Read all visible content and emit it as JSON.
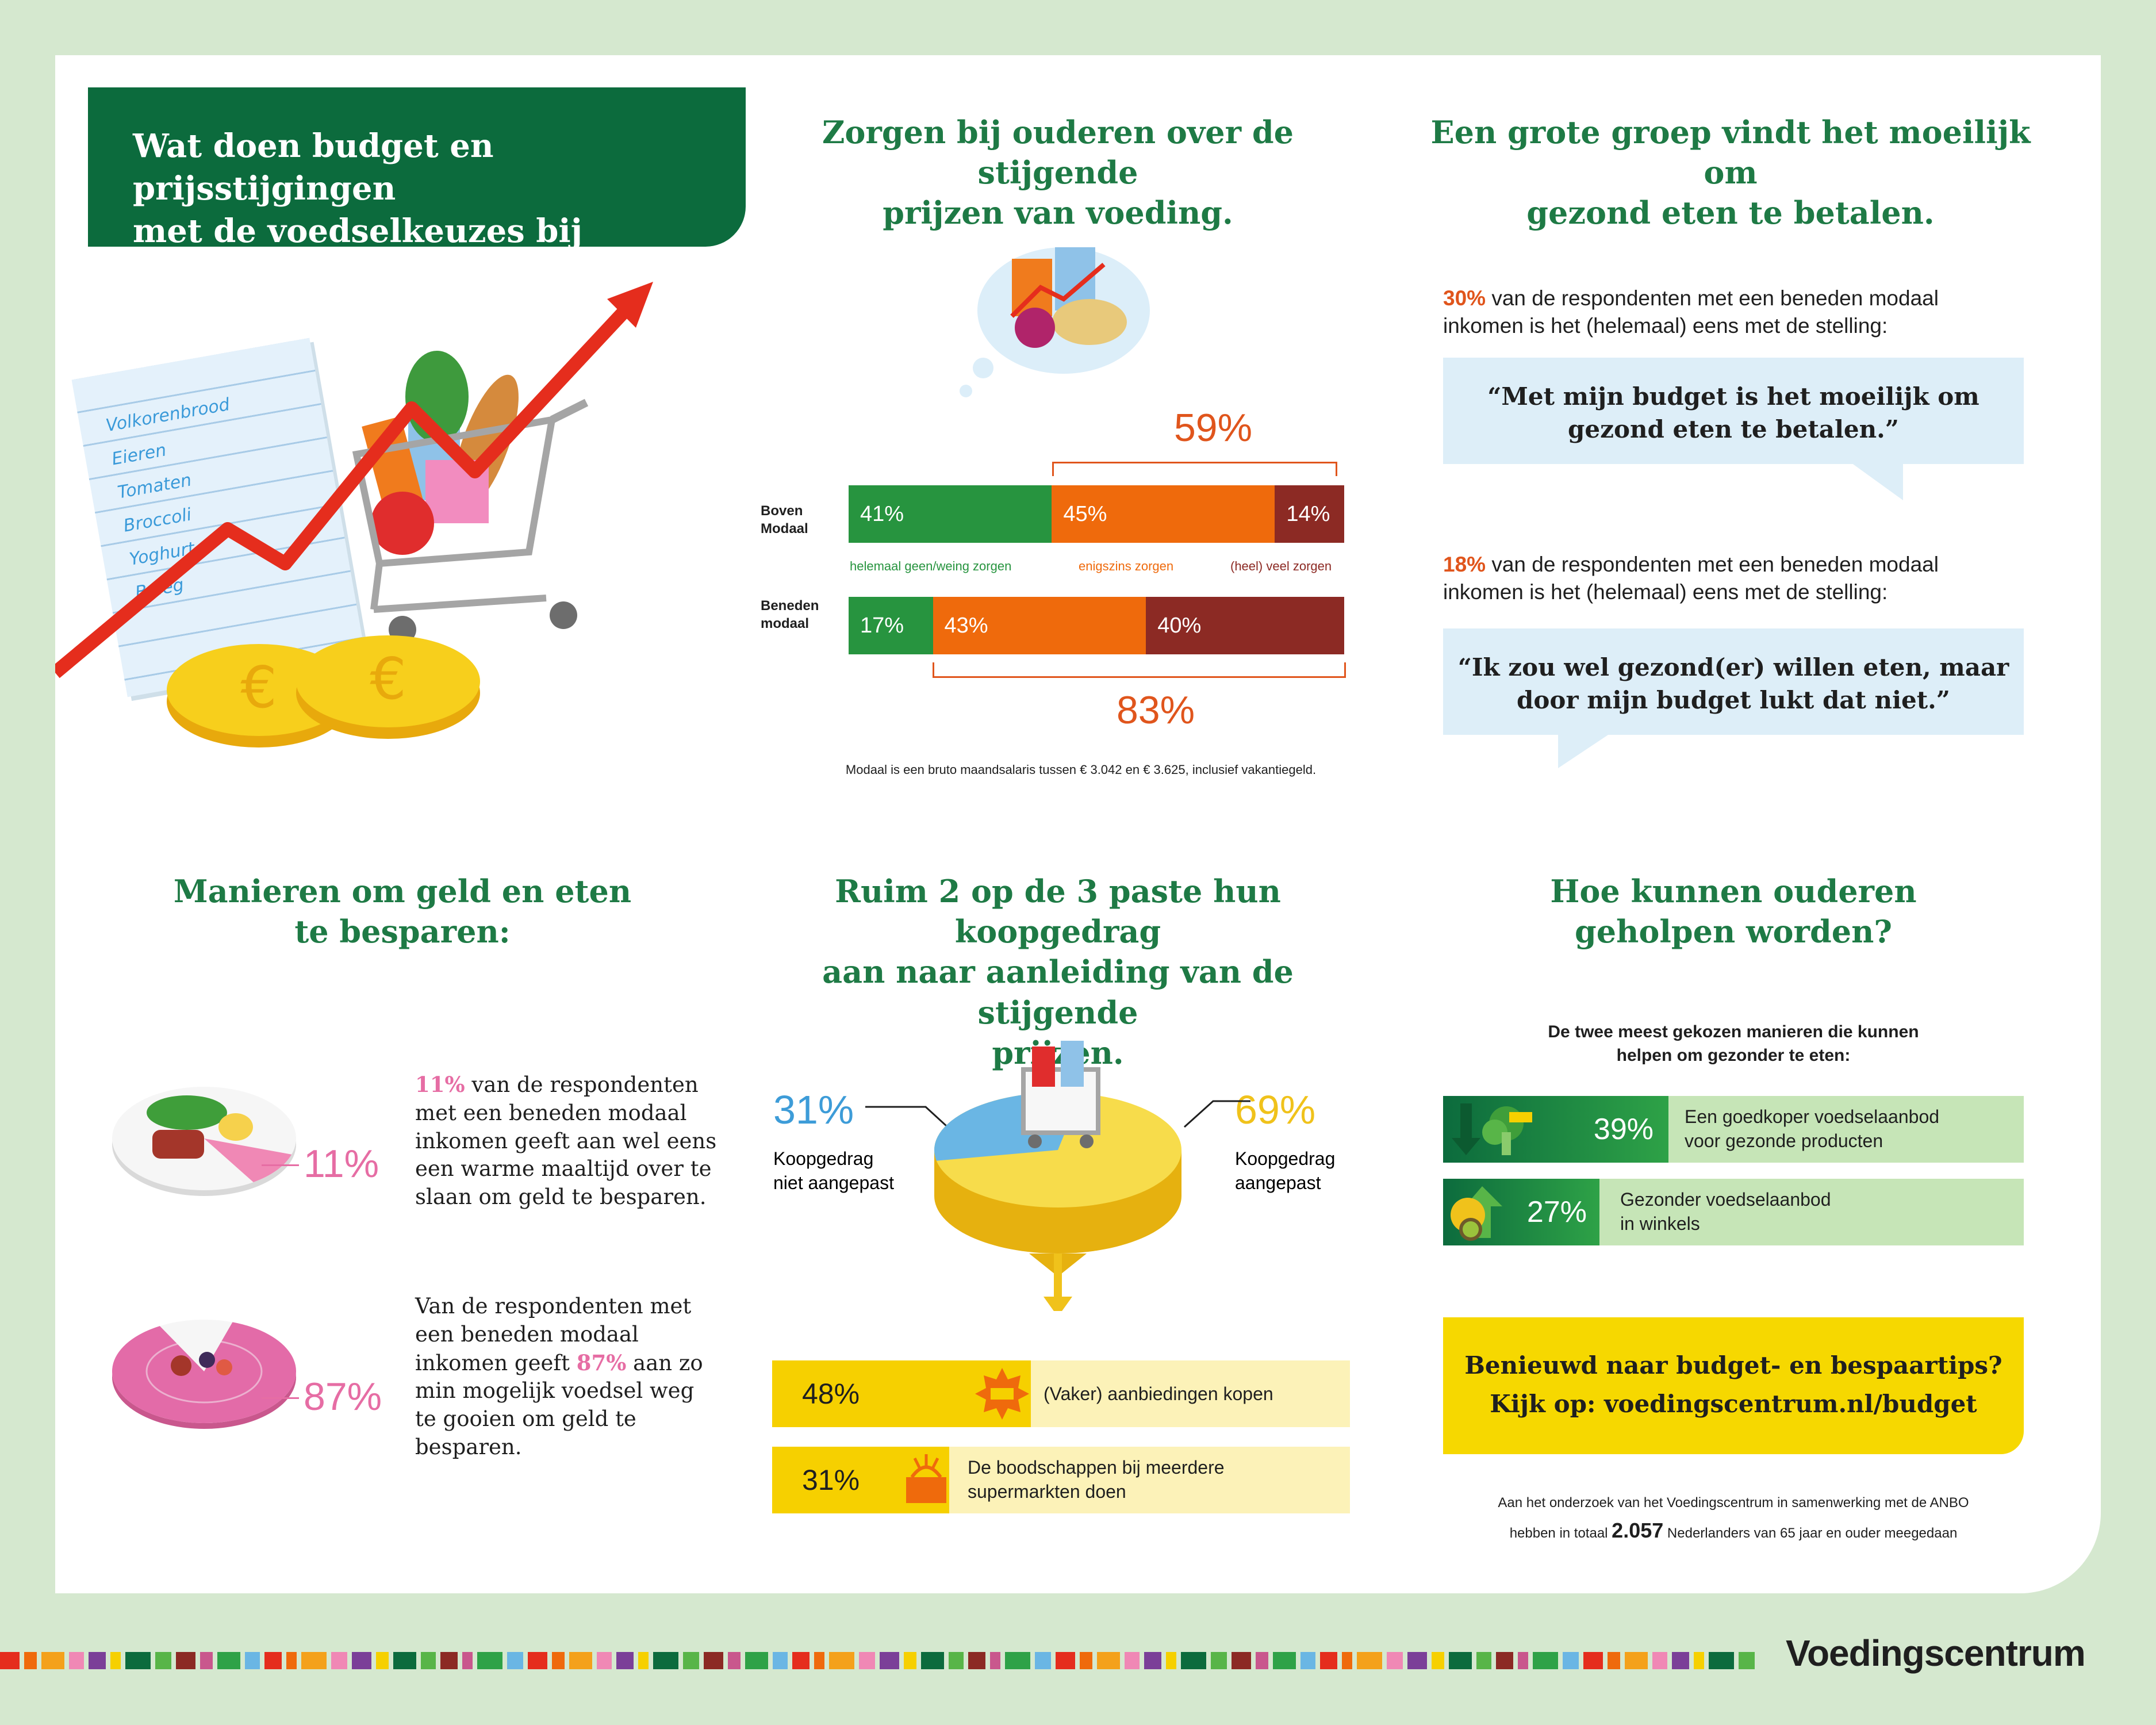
{
  "header": {
    "title_line1": "Wat doen budget en prijsstijgingen",
    "title_line2": "met de voedselkeuzes bij ouderen?"
  },
  "grocery_list": {
    "items": [
      "Volkorenbrood",
      "Eieren",
      "Tomaten",
      "Broccoli",
      "Yoghurt",
      "Beleg"
    ]
  },
  "worry_section": {
    "title_line1": "Zorgen bij ouderen over de stijgende",
    "title_line2": "prijzen van voeding.",
    "top_bracket": "59%",
    "bottom_bracket": "83%",
    "rows": [
      {
        "label_line1": "Boven",
        "label_line2": "Modaal",
        "values": [
          41,
          45,
          14
        ]
      },
      {
        "label_line1": "Beneden",
        "label_line2": "modaal",
        "values": [
          17,
          43,
          40
        ]
      }
    ],
    "legend": [
      "helemaal geen/weing zorgen",
      "enigszins zorgen",
      "(heel) veel zorgen"
    ],
    "footnote": "Modaal is een bruto maandsalaris tussen € 3.042 en € 3.625, inclusief vakantiegeld.",
    "colors": [
      "#27943f",
      "#ef6a0c",
      "#8c2a24"
    ]
  },
  "difficult_section": {
    "title_line1": "Een grote groep vindt het moeilijk om",
    "title_line2": "gezond eten te betalen.",
    "stat1_pct": "30%",
    "stat1_line1": " van de respondenten met een beneden modaal",
    "stat1_line2": "inkomen is het (helemaal) eens met de stelling:",
    "quote1_line1": "“Met mijn budget is het moeilijk om",
    "quote1_line2": "gezond eten te betalen.”",
    "stat2_pct": "18%",
    "stat2_line1": " van de respondenten met een beneden modaal",
    "stat2_line2": "inkomen is het (helemaal) eens met de stelling:",
    "quote2_line1": "“Ik zou wel gezond(er) willen eten, maar",
    "quote2_line2": "door mijn budget lukt dat niet.”"
  },
  "saving_section": {
    "title_line1": "Manieren om geld en eten",
    "title_line2": "te besparen:",
    "plate1_pct": "11%",
    "plate1_value": 11,
    "plate1_text_pct": "11%",
    "plate1_lines": [
      " van de respondenten",
      "met een beneden modaal",
      "inkomen geeft aan wel eens",
      "een warme maaltijd over te",
      "slaan om geld te besparen."
    ],
    "plate2_pct": "87%",
    "plate2_value": 87,
    "plate2_line1": "Van de respondenten met",
    "plate2_line2": "een beneden modaal",
    "plate2_line3a": "inkomen geeft ",
    "plate2_line3_pct": "87%",
    "plate2_line3b": " aan zo",
    "plate2_line4": "min mogelijk voedsel weg",
    "plate2_line5": "te gooien om geld te",
    "plate2_line6": "besparen."
  },
  "behavior_section": {
    "title_line1": "Ruim 2 op de 3 paste hun koopgedrag",
    "title_line2": "aan naar aanleiding van de stijgende",
    "title_line3": "prijzen.",
    "left_pct": "31%",
    "left_line1": "Koopgedrag",
    "left_line2": "niet aangepast",
    "right_pct": "69%",
    "right_line1": "Koopgedrag",
    "right_line2": "aangepast",
    "pie_values": [
      31,
      69
    ],
    "rows": [
      {
        "pct": "48%",
        "line1": "(Vaker) aanbiedingen kopen",
        "line2": ""
      },
      {
        "pct": "31%",
        "line1": "De boodschappen bij meerdere",
        "line2": "supermarkten doen"
      }
    ]
  },
  "help_section": {
    "title_line1": "Hoe kunnen ouderen",
    "title_line2": "geholpen worden?",
    "intro_line1": "De twee meest gekozen manieren die kunnen",
    "intro_line2": "helpen om gezonder te eten:",
    "rows": [
      {
        "pct": "39%",
        "line1": "Een goedkoper voedselaanbod",
        "line2": "voor gezonde producten"
      },
      {
        "pct": "27%",
        "line1": "Gezonder voedselaanbod",
        "line2": "in winkels"
      }
    ],
    "cta_line1": "Benieuwd naar budget- en bespaartips?",
    "cta_line2": "Kijk op: voedingscentrum.nl/budget",
    "footer_line1": "Aan het onderzoek van het Voedingscentrum in samenwerking met de ANBO",
    "footer_line2a": "hebben in totaal ",
    "footer_line2_num": "2.057",
    "footer_line2b": " Nederlanders van 65 jaar en ouder meegedaan"
  },
  "brand": {
    "name": "Voedingscentrum"
  }
}
